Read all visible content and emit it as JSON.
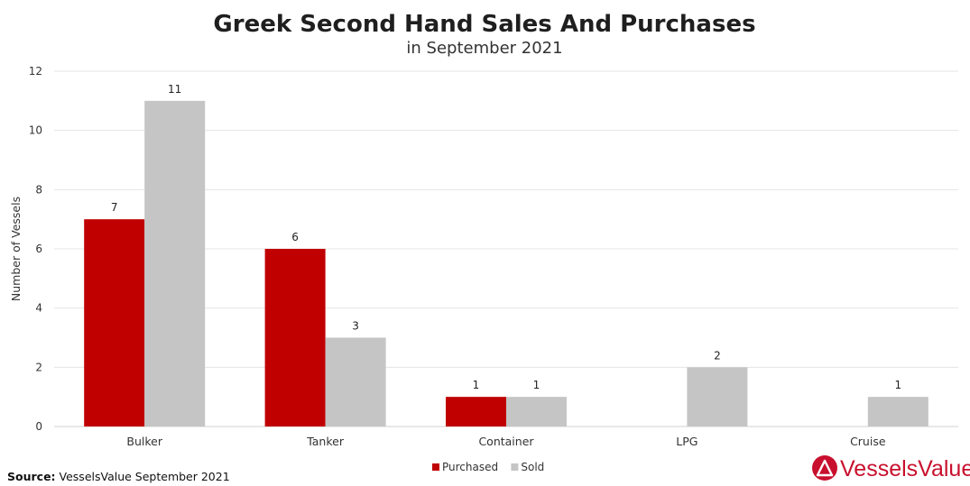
{
  "chart_data": {
    "type": "bar",
    "title": "Greek Second Hand Sales And Purchases",
    "subtitle": "in September 2021",
    "xlabel": "",
    "ylabel": "Number of Vessels",
    "ylim": [
      0,
      12
    ],
    "yticks": [
      0,
      2,
      4,
      6,
      8,
      10,
      12
    ],
    "grid": true,
    "legend_position": "bottom",
    "categories": [
      "Bulker",
      "Tanker",
      "Container",
      "LPG",
      "Cruise"
    ],
    "series": [
      {
        "name": "Purchased",
        "color": "#c00000",
        "values": [
          7,
          6,
          1,
          null,
          null
        ]
      },
      {
        "name": "Sold",
        "color": "#c5c5c5",
        "values": [
          11,
          3,
          1,
          2,
          1
        ]
      }
    ]
  },
  "footer": {
    "source_label": "Source:",
    "source_text": " VesselsValue September 2021"
  },
  "logo": {
    "text": "VesselsValue",
    "color": "#c8102e"
  }
}
